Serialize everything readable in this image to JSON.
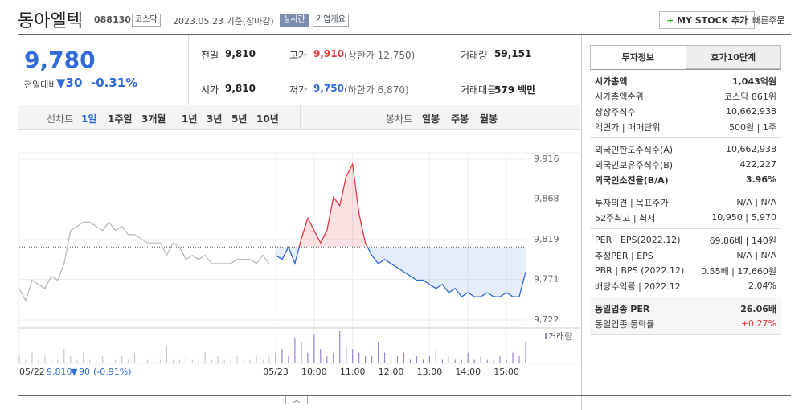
{
  "header": {
    "name": "동아엘텍",
    "code": "088130",
    "market": "코스닥",
    "date": "2023.05.23 기준(장마감)",
    "realtime": "실시간",
    "overview": "기업개요",
    "mystock": "MY STOCK 추가",
    "quick_order": "빠른주문"
  },
  "quote": {
    "price": "9,780",
    "change_label": "전일대비",
    "change": "30",
    "change_pct": "-0.31%"
  },
  "stats": [
    [
      "전일",
      "9,810",
      ""
    ],
    [
      "고가",
      "9,910",
      "(상한가 12,750)"
    ],
    [
      "거래량",
      "59,151",
      ""
    ],
    [
      "시가",
      "9,810",
      ""
    ],
    [
      "저가",
      "9,750",
      "(하한가 6,870)"
    ],
    [
      "거래대금",
      "579 백만",
      ""
    ]
  ],
  "period_tabs": {
    "label": "선차트",
    "items": [
      "1일",
      "1주일",
      "3개월",
      "1년",
      "3년",
      "5년",
      "10년"
    ]
  },
  "candle_tabs": {
    "label": "봉차트",
    "items": [
      "일봉",
      "주봉",
      "월봉"
    ]
  },
  "side_tabs": [
    "투자정보",
    "호가10단계"
  ],
  "side_groups": [
    [
      [
        "시가총액",
        "1,043억원"
      ],
      [
        "시가총액순위",
        "코스닥 861위"
      ],
      [
        "상장주식수",
        "10,662,938"
      ],
      [
        "액면가 | 매매단위",
        "500원 | 1주"
      ]
    ],
    [
      [
        "외국인한도주식수(A)",
        "10,662,938"
      ],
      [
        "외국인보유주식수(B)",
        "422,227"
      ],
      [
        "외국인소진율(B/A)",
        "3.96%"
      ]
    ],
    [
      [
        "투자의견 | 목표주가",
        "N/A | N/A"
      ],
      [
        "52주최고 | 최저",
        "10,950 | 5,970"
      ]
    ],
    [
      [
        "PER | EPS(2022.12)",
        "69.86배 | 140원"
      ],
      [
        "추정PER | EPS",
        "N/A | N/A"
      ],
      [
        "PBR | BPS (2022.12)",
        "0.55배 | 17,660원"
      ],
      [
        "배당수익률 | 2022.12",
        "2.04%"
      ]
    ],
    [
      [
        "동일업종 PER",
        "26.06배"
      ],
      [
        "동일업종 등락률",
        "+0.27%"
      ]
    ]
  ],
  "chart_data": {
    "type": "line",
    "volume_label": "거래량",
    "prev_day": {
      "date": "05/22",
      "close": "9,810",
      "change": "90",
      "change_pct": "(-0.91%)"
    },
    "baseline": 9810,
    "x": [
      0,
      1,
      2,
      3,
      4,
      5,
      6,
      7,
      8,
      9,
      10,
      11,
      12,
      13,
      14,
      15,
      16,
      17,
      18,
      19,
      20,
      21,
      22,
      23,
      24,
      25,
      26,
      27,
      28,
      29,
      30,
      31,
      32,
      33,
      34,
      35,
      36,
      37,
      38,
      39,
      40,
      41,
      42,
      43,
      44,
      45,
      46,
      47,
      48,
      49,
      50,
      51,
      52,
      53,
      54,
      55,
      56,
      57,
      58,
      59,
      60,
      61,
      62,
      63,
      64,
      65,
      66,
      67,
      68,
      69,
      70,
      71,
      72,
      73,
      74,
      75,
      76,
      77,
      78,
      79
    ],
    "series": [
      {
        "color": "#bbbbbb",
        "values": [
          9760,
          9745,
          9770,
          9765,
          9760,
          9775,
          9770,
          9790,
          9830,
          9835,
          9840,
          9840,
          9835,
          9830,
          9840,
          9830,
          9835,
          9825,
          9825,
          9820,
          9815,
          9815,
          9815,
          9800,
          9815,
          9810,
          9795,
          9800,
          9795,
          9800,
          9790,
          9790,
          9790,
          9790,
          9795,
          9795,
          9795,
          9790,
          9800,
          9790,
          null,
          null,
          null,
          null,
          null,
          null,
          null,
          null,
          null,
          null,
          null,
          null,
          null,
          null,
          null,
          null,
          null,
          null,
          null,
          null,
          null,
          null,
          null,
          null,
          null,
          null,
          null,
          null,
          null,
          null,
          null,
          null,
          null,
          null,
          null,
          null,
          null,
          null,
          null,
          null
        ]
      },
      {
        "color": "#2e6bd6",
        "up_color": "#e0383e",
        "values": [
          null,
          null,
          null,
          null,
          null,
          null,
          null,
          null,
          null,
          null,
          null,
          null,
          null,
          null,
          null,
          null,
          null,
          null,
          null,
          null,
          null,
          null,
          null,
          null,
          null,
          null,
          null,
          null,
          null,
          null,
          null,
          null,
          null,
          null,
          null,
          null,
          null,
          null,
          null,
          null,
          9800,
          9795,
          9810,
          9790,
          9820,
          9845,
          9830,
          9815,
          9830,
          9870,
          9860,
          9895,
          9910,
          9850,
          9815,
          9800,
          9790,
          9795,
          9790,
          9785,
          9780,
          9775,
          9770,
          9770,
          9765,
          9760,
          9765,
          9755,
          9760,
          9750,
          9755,
          9750,
          9750,
          9755,
          9750,
          9750,
          9755,
          9750,
          9750,
          9780
        ]
      }
    ],
    "volume": [
      2,
      1,
      3,
      1,
      2,
      1,
      1,
      4,
      2,
      1,
      3,
      1,
      1,
      2,
      1,
      1,
      2,
      1,
      3,
      1,
      1,
      2,
      1,
      5,
      1,
      1,
      2,
      1,
      1,
      3,
      1,
      2,
      1,
      1,
      2,
      1,
      1,
      2,
      1,
      2,
      3,
      4,
      2,
      7,
      6,
      3,
      8,
      4,
      2,
      3,
      9,
      5,
      4,
      3,
      2,
      2,
      6,
      3,
      2,
      2,
      3,
      1,
      2,
      1,
      2,
      4,
      1,
      2,
      1,
      1,
      3,
      1,
      2,
      1,
      1,
      2,
      1,
      3,
      2,
      6
    ],
    "volume_colors": [
      "#c8c8c8",
      "#9b7fd0"
    ],
    "xlim": [
      0,
      79
    ],
    "ylim": [
      9722,
      9916
    ],
    "yticks": [
      {
        "value": 9722,
        "label": "9,722"
      },
      {
        "value": 9771,
        "label": "9,771"
      },
      {
        "value": 9819,
        "label": "9,819"
      },
      {
        "value": 9868,
        "label": "9,868"
      },
      {
        "value": 9916,
        "label": "9,916"
      }
    ],
    "xticks": [
      {
        "value": 40,
        "label": "05/23"
      },
      {
        "value": 46,
        "label": "10:00"
      },
      {
        "value": 52,
        "label": "11:00"
      },
      {
        "value": 58,
        "label": "12:00"
      },
      {
        "value": 64,
        "label": "13:00"
      },
      {
        "value": 70,
        "label": "14:00"
      },
      {
        "value": 76,
        "label": "15:00"
      }
    ],
    "grid": true
  }
}
